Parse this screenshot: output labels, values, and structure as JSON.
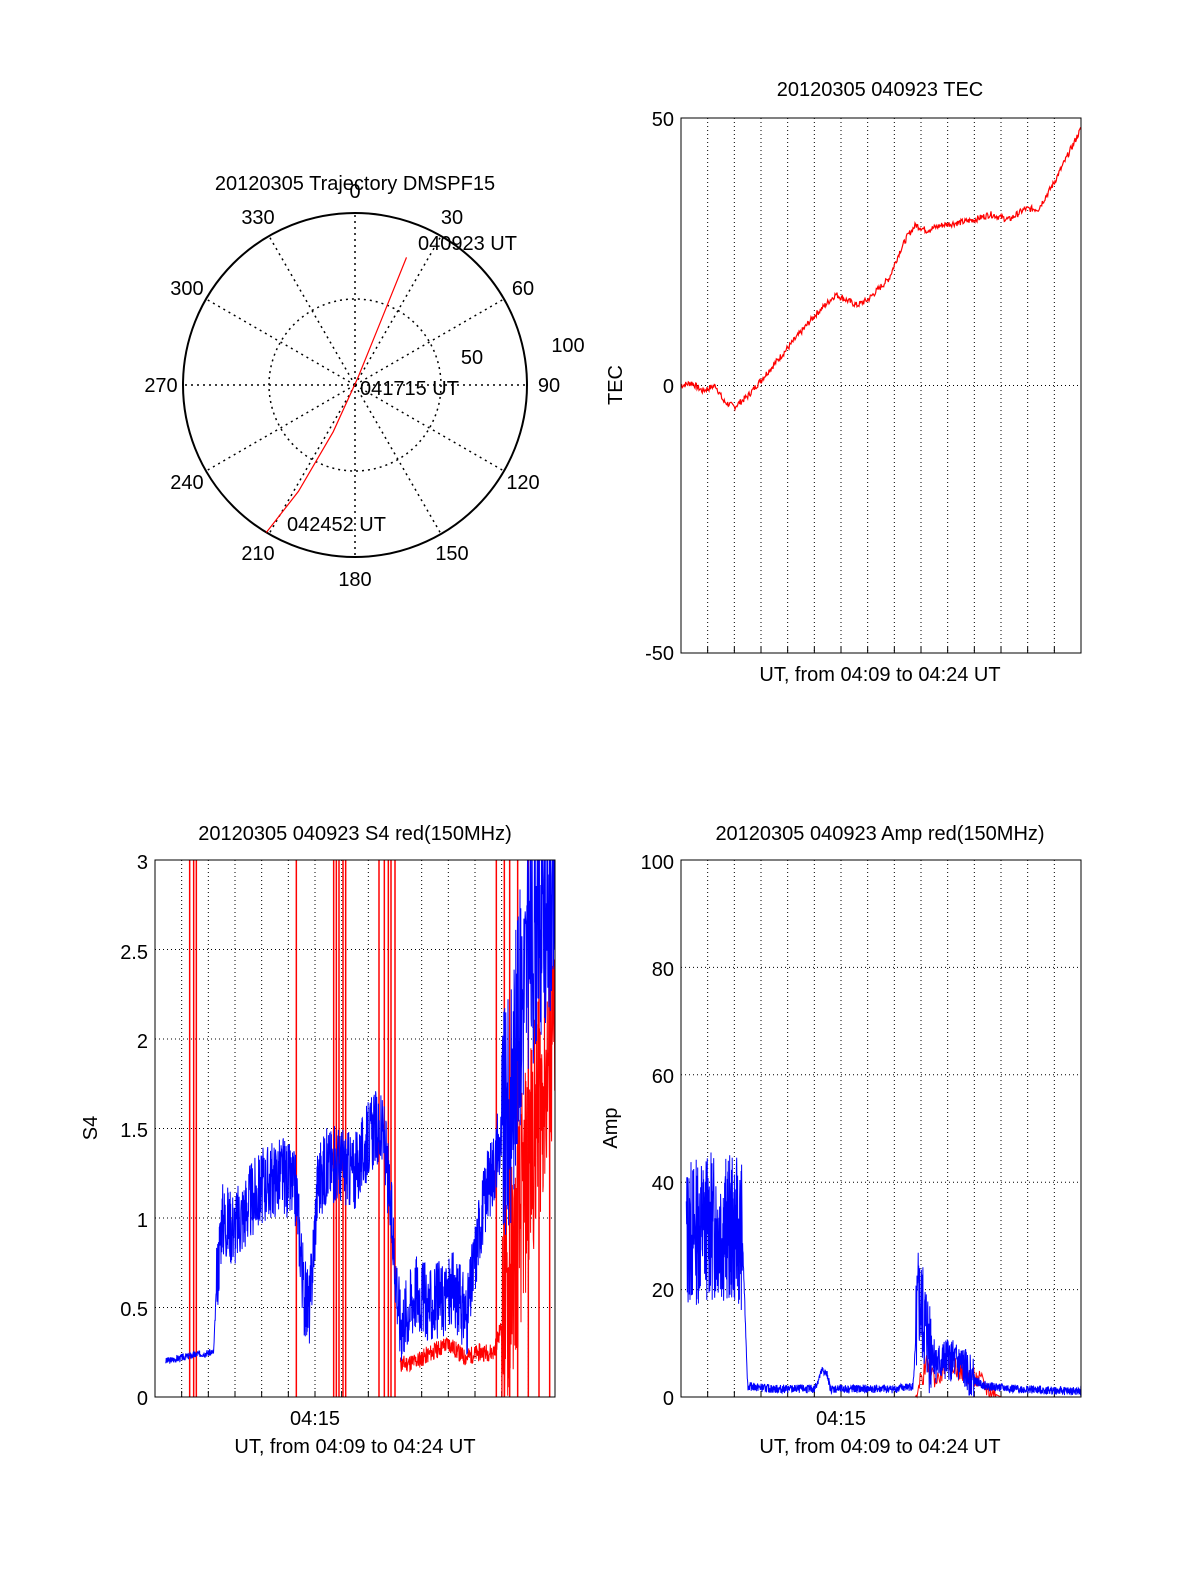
{
  "chart_data": [
    {
      "type": "polar",
      "title": "20120305 Trajectory DMSPF15",
      "azimuth_labels": [
        "0",
        "30",
        "60",
        "90",
        "120",
        "150",
        "180",
        "210",
        "240",
        "270",
        "300",
        "330"
      ],
      "radial_labels": [
        "50",
        "100"
      ],
      "rmax": 100,
      "trajectory": {
        "color": "#ff0000",
        "points": [
          {
            "az": 22,
            "r": 80
          },
          {
            "az": 22,
            "r": 40
          },
          {
            "az": 22,
            "r": 5
          },
          {
            "az": 205,
            "r": 30
          },
          {
            "az": 208,
            "r": 70
          },
          {
            "az": 211,
            "r": 100
          }
        ]
      },
      "annotations": [
        "040923 UT",
        "041715 UT",
        "042452 UT"
      ]
    },
    {
      "type": "line",
      "title": "20120305 040923 TEC",
      "xlabel": "UT, from 04:09 to 04:24 UT",
      "ylabel": "TEC",
      "ylim": [
        -50,
        50
      ],
      "yticks": [
        "50",
        "0",
        "-50"
      ],
      "xlim": [
        0,
        15
      ],
      "series": [
        {
          "name": "TEC",
          "color": "#ff0000",
          "x": [
            0,
            0.4,
            0.8,
            1.3,
            1.6,
            2.0,
            2.5,
            3.0,
            4.0,
            5.0,
            5.8,
            6.2,
            6.6,
            7.0,
            7.4,
            7.8,
            8.2,
            8.5,
            8.8,
            9.2,
            9.8,
            10.5,
            11.0,
            11.6,
            12.3,
            12.9,
            13.4,
            14.0,
            14.5,
            15.0
          ],
          "y": [
            0,
            0.5,
            -1,
            0,
            -3,
            -4,
            -2,
            1,
            7,
            13,
            17,
            16,
            15,
            16,
            18,
            20,
            25,
            28,
            30,
            29,
            30,
            30.5,
            31,
            32,
            31,
            33,
            33,
            38,
            43,
            48
          ]
        }
      ]
    },
    {
      "type": "line",
      "title": "20120305 040923 S4 red(150MHz)",
      "xlabel": "UT, from 04:09 to 04:24 UT",
      "ylabel": "S4",
      "ylim": [
        0,
        3
      ],
      "yticks": [
        "0",
        "0.5",
        "1",
        "1.5",
        "2",
        "2.5",
        "3"
      ],
      "xlim": [
        0,
        15
      ],
      "xtick_label": "04:15",
      "xtick_value": 6,
      "series": [
        {
          "name": "blue",
          "color": "#0000ff",
          "x": [
            0.4,
            1.0,
            1.6,
            2.2,
            2.3,
            2.5,
            3.0,
            3.6,
            4.2,
            4.8,
            5.3,
            5.6,
            5.8,
            6.1,
            6.5,
            7.0,
            7.5,
            7.9,
            8.2,
            8.6,
            9.2,
            9.8,
            10.3,
            11.2,
            11.7,
            12.2,
            12.7,
            13.3,
            13.8,
            14.3,
            15.0
          ],
          "y": [
            0.2,
            0.22,
            0.24,
            0.25,
            0.6,
            1.0,
            0.95,
            1.1,
            1.2,
            1.25,
            1.15,
            0.55,
            0.5,
            1.2,
            1.3,
            1.3,
            1.25,
            1.4,
            1.5,
            1.45,
            0.4,
            0.6,
            0.5,
            0.6,
            0.45,
            1.0,
            1.3,
            1.6,
            2.3,
            2.6,
            2.8
          ]
        },
        {
          "name": "red",
          "color": "#ff0000",
          "x": [
            9.2,
            9.8,
            10.4,
            11.0,
            11.6,
            12.2,
            12.7,
            13.1,
            13.5,
            14.0,
            14.5,
            15.0
          ],
          "y": [
            0.18,
            0.2,
            0.25,
            0.3,
            0.22,
            0.25,
            0.25,
            0.45,
            0.8,
            1.3,
            1.7,
            2.0
          ]
        }
      ],
      "red_spikes_x": [
        1.3,
        1.45,
        1.55,
        5.3,
        6.7,
        6.8,
        6.9,
        7.05,
        7.15,
        8.4,
        8.6,
        8.75,
        8.85,
        9.0,
        12.8,
        13.1,
        13.3,
        13.6,
        14.0,
        14.4,
        14.8
      ]
    },
    {
      "type": "line",
      "title": "20120305 040923 Amp red(150MHz)",
      "xlabel": "UT, from 04:09 to 04:24 UT",
      "ylabel": "Amp",
      "ylim": [
        0,
        100
      ],
      "yticks": [
        "0",
        "20",
        "40",
        "60",
        "80",
        "100"
      ],
      "xlim": [
        0,
        15
      ],
      "xtick_label": "04:15",
      "xtick_value": 6,
      "series": [
        {
          "name": "blue",
          "color": "#0000ff",
          "x": [
            0.2,
            1.0,
            2.0,
            2.3,
            2.5,
            3.5,
            5.0,
            5.3,
            5.5,
            5.6,
            6.0,
            8.0,
            8.7,
            8.9,
            9.2,
            9.6,
            10.0,
            10.5,
            11.0,
            11.5,
            12.5,
            14.0,
            15.0
          ],
          "y": [
            30,
            32,
            31,
            30,
            2,
            1.5,
            1.5,
            5,
            4,
            1.5,
            1.5,
            1.5,
            2,
            18,
            12,
            6,
            7,
            6,
            3,
            2,
            1.5,
            1.2,
            1.0
          ]
        },
        {
          "name": "red",
          "color": "#ff0000",
          "x": [
            0,
            8.8,
            9.2,
            9.6,
            10.0,
            10.4,
            10.8,
            11.2,
            11.6,
            12.0
          ],
          "y": [
            0,
            0,
            6,
            3,
            7,
            5,
            4,
            3,
            1,
            0
          ]
        }
      ]
    }
  ]
}
